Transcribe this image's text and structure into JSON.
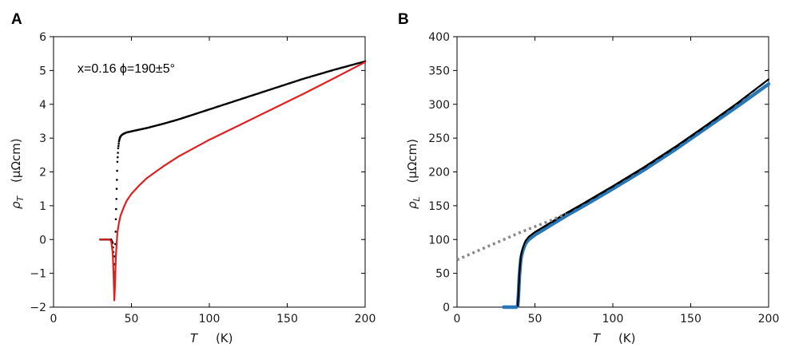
{
  "colors": {
    "black": "#000000",
    "red": "#e02020",
    "blue": "#2878b8",
    "dashed_black": "#000000",
    "dotted_gray": "#888888"
  },
  "chart_data": [
    {
      "panel": "A",
      "type": "line",
      "annotation": "x=0.16 ϕ=190±5°",
      "xlabel": {
        "symbol": "T",
        "unit": "(K)"
      },
      "ylabel": {
        "symbol": "ρ",
        "sub": "T",
        "unit": "(μΩcm)"
      },
      "xlim": [
        0,
        200
      ],
      "ylim": [
        -2,
        6
      ],
      "xticks": [
        0,
        50,
        100,
        150,
        200
      ],
      "yticks": [
        -2,
        -1,
        0,
        1,
        2,
        3,
        4,
        5,
        6
      ],
      "xtick_labels": [
        "0",
        "50",
        "100",
        "150",
        "200"
      ],
      "ytick_labels": [
        "−2",
        "−1",
        "0",
        "1",
        "2",
        "3",
        "4",
        "5",
        "6"
      ],
      "grid": false,
      "series": [
        {
          "style": "dots",
          "color_key": "black",
          "x": [
            30,
            33,
            36,
            37,
            38,
            38.5,
            39,
            39.5,
            40,
            40.5,
            41,
            41.5,
            42,
            42.5,
            43,
            44,
            45,
            47,
            50,
            55,
            60,
            70,
            80,
            90,
            100,
            120,
            140,
            160,
            180,
            200
          ],
          "y": [
            0,
            0,
            0,
            0,
            -0.1,
            -0.5,
            -1.2,
            -0.5,
            0.6,
            1.5,
            2.3,
            2.7,
            2.9,
            3.0,
            3.05,
            3.1,
            3.13,
            3.17,
            3.2,
            3.25,
            3.3,
            3.42,
            3.55,
            3.7,
            3.85,
            4.15,
            4.45,
            4.75,
            5.02,
            5.27
          ]
        },
        {
          "style": "line",
          "color_key": "red",
          "x": [
            30,
            33,
            36,
            37,
            38,
            38.5,
            39,
            39.5,
            40,
            41,
            42,
            43,
            45,
            47,
            50,
            55,
            60,
            70,
            80,
            90,
            100,
            120,
            140,
            160,
            180,
            200
          ],
          "y": [
            0,
            0,
            0,
            -0.05,
            -0.4,
            -1.0,
            -1.8,
            -1.3,
            -0.5,
            0.2,
            0.5,
            0.7,
            0.95,
            1.15,
            1.35,
            1.6,
            1.82,
            2.15,
            2.45,
            2.7,
            2.95,
            3.4,
            3.85,
            4.3,
            4.77,
            5.25
          ]
        }
      ]
    },
    {
      "panel": "B",
      "type": "line",
      "xlabel": {
        "symbol": "T",
        "unit": "(K)"
      },
      "ylabel": {
        "symbol": "ρ",
        "sub": "L",
        "unit": "(μΩcm)"
      },
      "xlim": [
        0,
        200
      ],
      "ylim": [
        0,
        400
      ],
      "xticks": [
        0,
        50,
        100,
        150,
        200
      ],
      "yticks": [
        0,
        50,
        100,
        150,
        200,
        250,
        300,
        350,
        400
      ],
      "xtick_labels": [
        "0",
        "50",
        "100",
        "150",
        "200"
      ],
      "ytick_labels": [
        "0",
        "50",
        "100",
        "150",
        "200",
        "250",
        "300",
        "350",
        "400"
      ],
      "grid": false,
      "series": [
        {
          "style": "thick-line",
          "color_key": "blue",
          "x": [
            30,
            36,
            38,
            39,
            39.5,
            40,
            40.5,
            41,
            42,
            43,
            44,
            46,
            50,
            55,
            60,
            70,
            80,
            100,
            120,
            140,
            160,
            180,
            200
          ],
          "y": [
            0,
            0,
            0,
            2,
            20,
            45,
            60,
            72,
            82,
            89,
            94,
            100,
            107,
            114,
            121,
            135,
            148,
            175,
            203,
            233,
            265,
            297,
            330
          ]
        },
        {
          "style": "line",
          "color_key": "black",
          "x": [
            39,
            39.5,
            40,
            40.5,
            41,
            42,
            43,
            44,
            46,
            50,
            55,
            60,
            70,
            80,
            100,
            120,
            140,
            160,
            180,
            200
          ],
          "y": [
            2,
            22,
            48,
            64,
            76,
            86,
            93,
            98,
            104,
            111,
            118,
            125,
            139,
            152,
            179,
            207,
            237,
            269,
            302,
            337
          ]
        },
        {
          "style": "dashed",
          "color_key": "dashed_black",
          "x": [
            50,
            60,
            70,
            80,
            100,
            120,
            140,
            160,
            180,
            200
          ],
          "y": [
            111,
            124,
            138,
            151,
            178,
            206,
            236,
            268,
            301,
            337
          ]
        },
        {
          "style": "dotted",
          "color_key": "dotted_gray",
          "x": [
            0,
            10,
            20,
            30,
            40,
            50,
            60,
            70
          ],
          "y": [
            70,
            80,
            90,
            100,
            110,
            119,
            128,
            138
          ]
        }
      ]
    }
  ]
}
